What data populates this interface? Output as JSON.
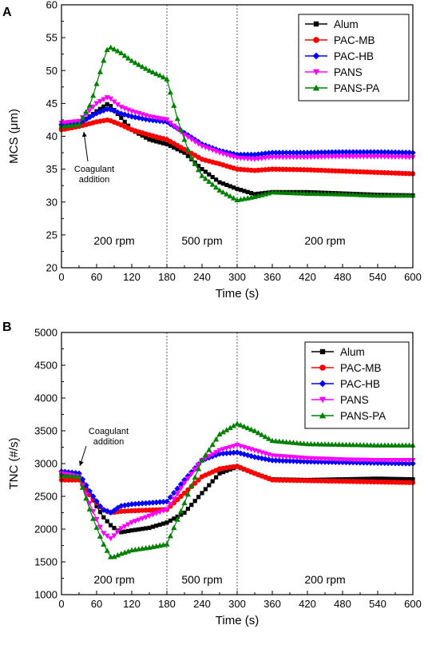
{
  "colors": {
    "Alum": "#000000",
    "PAC-MB": "#ff0000",
    "PAC-HB": "#0000ff",
    "PANS": "#ff00ff",
    "PANS-PA": "#008000"
  },
  "chart_data": [
    {
      "type": "line",
      "panel": "A",
      "xlabel": "Time (s)",
      "ylabel": "MCS (μm)",
      "xlim": [
        0,
        600
      ],
      "ylim": [
        20,
        60
      ],
      "xticks": [
        0,
        60,
        120,
        180,
        240,
        300,
        360,
        420,
        480,
        540,
        600
      ],
      "yticks": [
        20,
        25,
        30,
        35,
        40,
        45,
        50,
        55,
        60
      ],
      "grid": false,
      "legend_position": "top-right",
      "vlines": [
        180,
        300
      ],
      "regions": [
        {
          "label": "200 rpm",
          "x": 90
        },
        {
          "label": "500 rpm",
          "x": 240
        },
        {
          "label": "200 rpm",
          "x": 450
        }
      ],
      "annotation": {
        "lines": [
          "Coagulant",
          "addition"
        ],
        "arrow_x": 30
      },
      "series": [
        {
          "name": "Alum",
          "marker": "square",
          "x": [
            0,
            30,
            60,
            80,
            100,
            120,
            150,
            180,
            210,
            240,
            270,
            300,
            330,
            360,
            420,
            480,
            540,
            600
          ],
          "y": [
            41.5,
            41.8,
            43.8,
            45.0,
            43.0,
            41.0,
            39.5,
            38.8,
            37.5,
            35.0,
            33.0,
            32.0,
            31.2,
            31.5,
            31.5,
            31.3,
            31.1,
            31.0
          ]
        },
        {
          "name": "PAC-MB",
          "marker": "circle",
          "x": [
            0,
            30,
            60,
            80,
            100,
            120,
            150,
            180,
            210,
            240,
            270,
            300,
            330,
            360,
            420,
            480,
            540,
            600
          ],
          "y": [
            41.0,
            41.5,
            42.2,
            42.5,
            41.8,
            41.0,
            40.2,
            39.5,
            38.0,
            36.5,
            35.8,
            35.0,
            34.8,
            35.0,
            34.9,
            34.7,
            34.5,
            34.3
          ]
        },
        {
          "name": "PAC-HB",
          "marker": "diamond",
          "x": [
            0,
            30,
            60,
            80,
            100,
            120,
            150,
            180,
            210,
            240,
            270,
            300,
            330,
            360,
            420,
            480,
            540,
            600
          ],
          "y": [
            41.8,
            42.0,
            43.5,
            44.2,
            43.5,
            43.0,
            42.5,
            42.2,
            40.5,
            38.8,
            37.8,
            37.2,
            37.2,
            37.5,
            37.5,
            37.6,
            37.6,
            37.5
          ]
        },
        {
          "name": "PANS",
          "marker": "triangle-down",
          "x": [
            0,
            30,
            60,
            80,
            100,
            120,
            150,
            180,
            210,
            240,
            270,
            300,
            330,
            360,
            420,
            480,
            540,
            600
          ],
          "y": [
            42.0,
            42.3,
            45.0,
            46.0,
            44.5,
            43.8,
            43.0,
            42.5,
            40.2,
            38.5,
            37.5,
            36.7,
            36.5,
            36.8,
            36.8,
            36.9,
            36.9,
            36.8
          ]
        },
        {
          "name": "PANS-PA",
          "marker": "triangle",
          "x": [
            0,
            30,
            50,
            70,
            80,
            100,
            120,
            150,
            170,
            180,
            200,
            220,
            240,
            270,
            300,
            330,
            360,
            420,
            480,
            540,
            600
          ],
          "y": [
            41.5,
            41.8,
            45.0,
            51.0,
            53.7,
            52.8,
            51.5,
            50.0,
            49.2,
            48.7,
            42.0,
            37.0,
            34.0,
            31.8,
            30.3,
            30.8,
            31.5,
            31.3,
            31.2,
            31.0,
            31.0
          ]
        }
      ]
    },
    {
      "type": "line",
      "panel": "B",
      "xlabel": "Time (s)",
      "ylabel": "TNC (#/s)",
      "xlim": [
        0,
        600
      ],
      "ylim": [
        1000,
        5000
      ],
      "xticks": [
        0,
        60,
        120,
        180,
        240,
        300,
        360,
        420,
        480,
        540,
        600
      ],
      "yticks": [
        1000,
        1500,
        2000,
        2500,
        3000,
        3500,
        4000,
        4500,
        5000
      ],
      "grid": false,
      "legend_position": "top-right",
      "vlines": [
        180,
        300
      ],
      "regions": [
        {
          "label": "200 rpm",
          "x": 90
        },
        {
          "label": "500 rpm",
          "x": 240
        },
        {
          "label": "200 rpm",
          "x": 450
        }
      ],
      "annotation": {
        "lines": [
          "Coagulant",
          "addition"
        ],
        "arrow_x": 30
      },
      "series": [
        {
          "name": "Alum",
          "marker": "square",
          "x": [
            0,
            30,
            50,
            70,
            85,
            100,
            120,
            150,
            180,
            210,
            240,
            270,
            300,
            330,
            360,
            420,
            480,
            540,
            600
          ],
          "y": [
            2850,
            2820,
            2500,
            2200,
            2050,
            1950,
            1980,
            2020,
            2100,
            2250,
            2550,
            2850,
            2950,
            2850,
            2760,
            2750,
            2760,
            2770,
            2760
          ]
        },
        {
          "name": "PAC-MB",
          "marker": "circle",
          "x": [
            0,
            30,
            50,
            70,
            85,
            100,
            120,
            150,
            180,
            210,
            240,
            270,
            300,
            330,
            360,
            420,
            480,
            540,
            600
          ],
          "y": [
            2750,
            2750,
            2500,
            2300,
            2250,
            2270,
            2280,
            2290,
            2300,
            2550,
            2800,
            2920,
            2960,
            2850,
            2750,
            2740,
            2730,
            2720,
            2710
          ]
        },
        {
          "name": "PAC-HB",
          "marker": "diamond",
          "x": [
            0,
            30,
            50,
            70,
            85,
            100,
            120,
            150,
            180,
            210,
            240,
            270,
            300,
            330,
            360,
            420,
            480,
            540,
            600
          ],
          "y": [
            2880,
            2850,
            2550,
            2300,
            2250,
            2350,
            2380,
            2400,
            2420,
            2750,
            3050,
            3150,
            3170,
            3100,
            3050,
            3030,
            3020,
            3010,
            3000
          ]
        },
        {
          "name": "PANS",
          "marker": "triangle-down",
          "x": [
            0,
            30,
            50,
            70,
            85,
            100,
            120,
            150,
            180,
            210,
            240,
            270,
            300,
            330,
            360,
            420,
            480,
            540,
            600
          ],
          "y": [
            2850,
            2800,
            2350,
            1950,
            1850,
            2000,
            2100,
            2200,
            2300,
            2700,
            3050,
            3200,
            3280,
            3200,
            3120,
            3080,
            3060,
            3050,
            3050
          ]
        },
        {
          "name": "PANS-PA",
          "marker": "triangle",
          "x": [
            0,
            30,
            50,
            70,
            85,
            100,
            120,
            150,
            180,
            210,
            240,
            270,
            300,
            330,
            360,
            420,
            480,
            540,
            600
          ],
          "y": [
            2820,
            2800,
            2250,
            1800,
            1560,
            1620,
            1680,
            1720,
            1770,
            2400,
            3050,
            3450,
            3610,
            3500,
            3350,
            3300,
            3290,
            3280,
            3280
          ]
        }
      ]
    }
  ]
}
